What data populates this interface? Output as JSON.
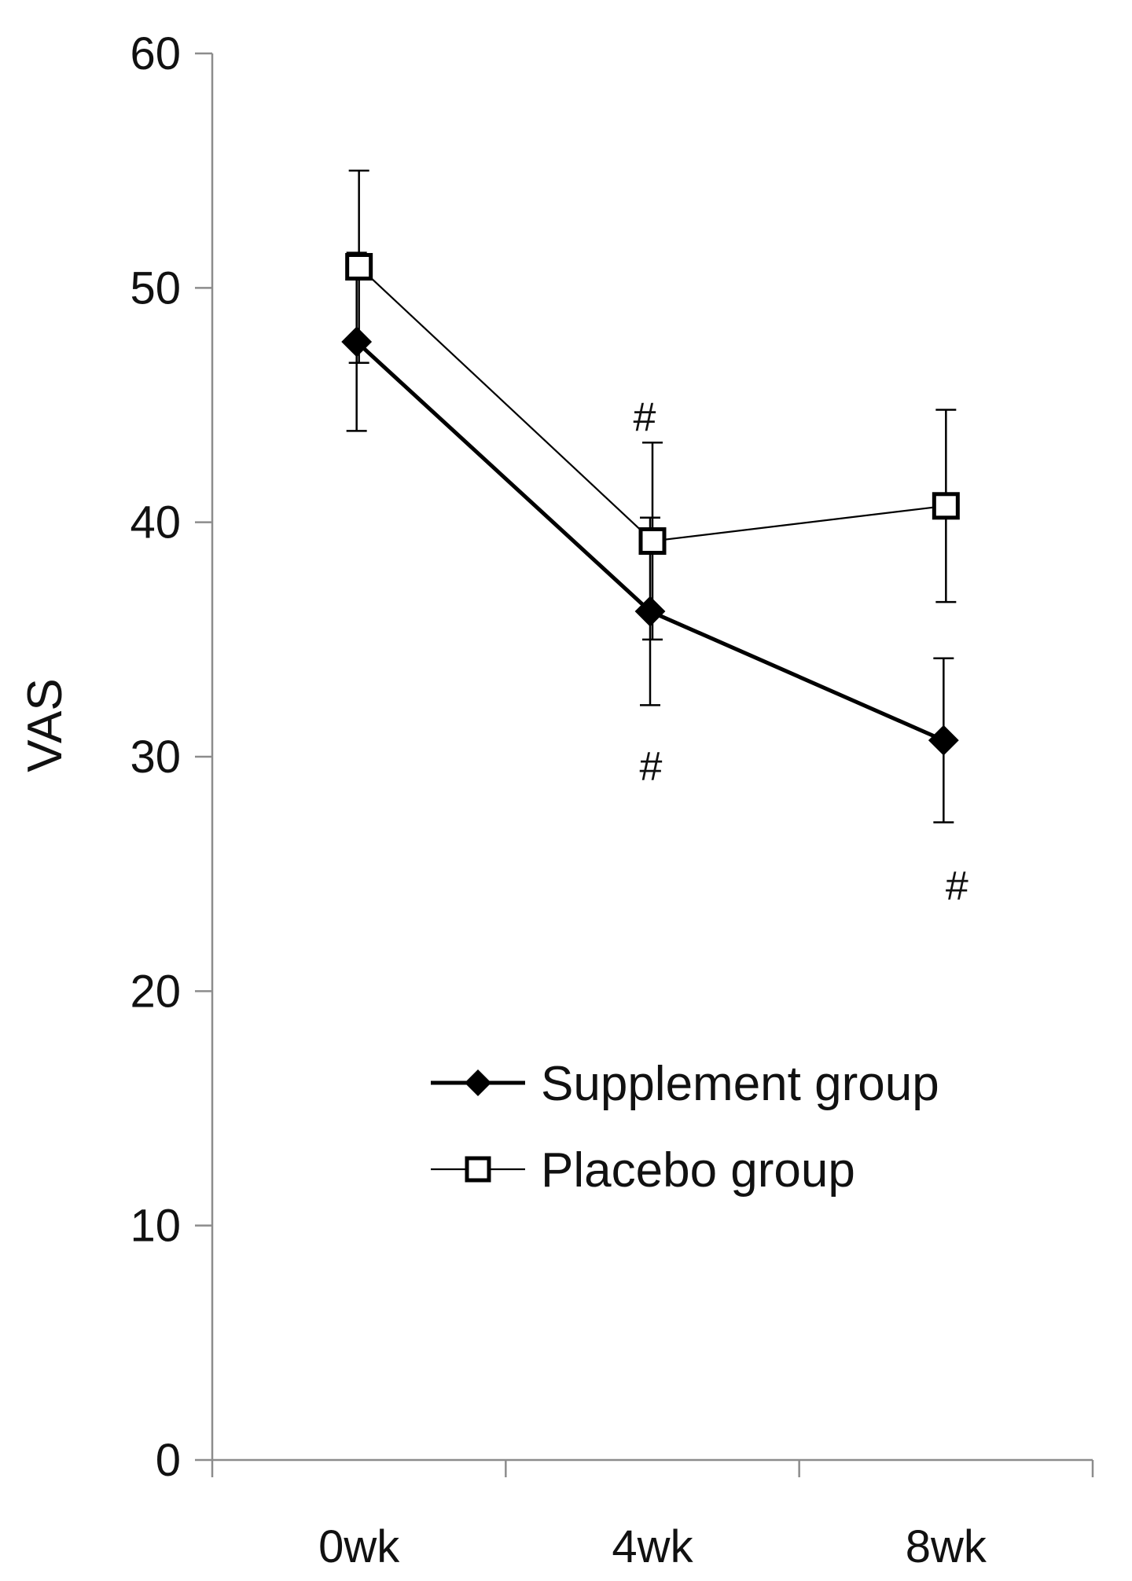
{
  "chart_data": {
    "type": "line",
    "title": "",
    "xlabel": "",
    "ylabel": "VAS",
    "categories": [
      "0wk",
      "4wk",
      "8wk"
    ],
    "ylim": [
      0,
      60
    ],
    "yticks": [
      "0",
      "10",
      "20",
      "30",
      "40",
      "50",
      "60"
    ],
    "grid": false,
    "legend_position": "lower-right",
    "series": [
      {
        "name": "Supplement group",
        "values": [
          47.7,
          36.2,
          30.7
        ],
        "error": [
          3.8,
          4.0,
          3.5
        ],
        "marker": "filled-diamond",
        "color": "#000000"
      },
      {
        "name": "Placebo group",
        "values": [
          50.9,
          39.2,
          40.7
        ],
        "error": [
          4.1,
          4.2,
          4.1
        ],
        "marker": "open-square",
        "color": "#000000"
      }
    ],
    "annotations": [
      {
        "text": "#",
        "category": "4wk",
        "y": 44.5
      },
      {
        "text": "#",
        "category": "4wk",
        "y": 29.6
      },
      {
        "text": "#",
        "category": "8wk",
        "y": 24.5
      }
    ]
  }
}
